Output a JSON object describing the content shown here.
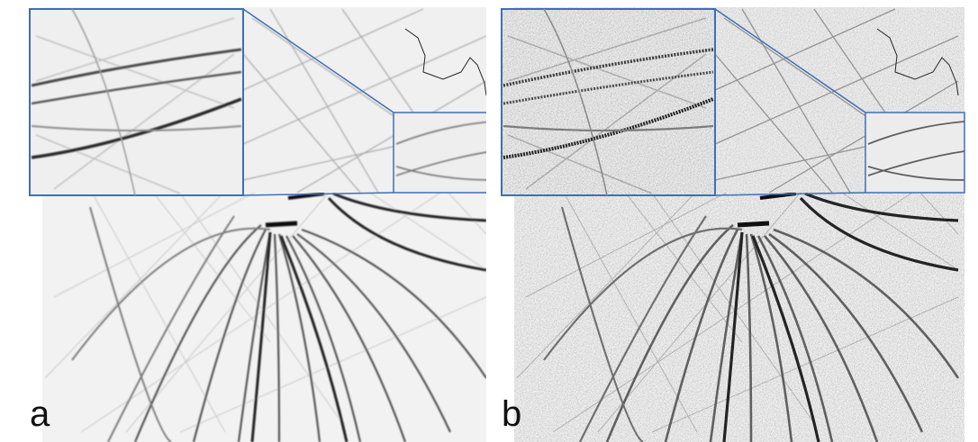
{
  "figure": {
    "panels": [
      {
        "label": "a",
        "style": "smooth"
      },
      {
        "label": "b",
        "style": "noisy"
      }
    ],
    "colors": {
      "inset_frame": "#3f6fb6",
      "background": "#f3f3f3",
      "line_dark": "#202020",
      "line_mid": "#6a6a6a",
      "line_light": "#b5b5b5"
    }
  }
}
